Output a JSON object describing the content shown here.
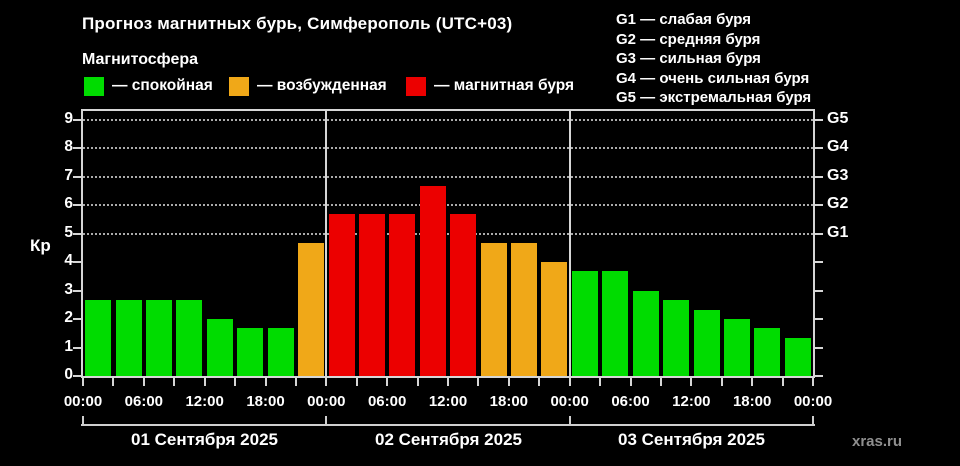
{
  "header": {
    "title": "Прогноз магнитных бурь, Симферополь (UTC+03)",
    "legend_title": "Магнитосфера",
    "legend": [
      {
        "id": "quiet",
        "label": "— спокойная",
        "color": "#00dc00"
      },
      {
        "id": "excited",
        "label": "— возбужденная",
        "color": "#f0a818"
      },
      {
        "id": "storm",
        "label": "— магнитная буря",
        "color": "#ec0000"
      }
    ],
    "storm_scale": [
      "G1 — слабая буря",
      "G2 — средняя буря",
      "G3 — сильная буря",
      "G4 — очень сильная буря",
      "G5 — экстремальная буря"
    ]
  },
  "chart_data": {
    "type": "bar",
    "title": "Прогноз магнитных бурь, Симферополь (UTC+03)",
    "ylabel": "Кр",
    "ylim": [
      0,
      9.3
    ],
    "yticks": [
      0,
      1,
      2,
      3,
      4,
      5,
      6,
      7,
      8,
      9
    ],
    "grid_kp_levels": [
      5,
      6,
      7,
      8,
      9
    ],
    "right_axis": [
      {
        "label": "G5",
        "kp": 9
      },
      {
        "label": "G4",
        "kp": 8
      },
      {
        "label": "G3",
        "kp": 7
      },
      {
        "label": "G2",
        "kp": 6
      },
      {
        "label": "G1",
        "kp": 5
      }
    ],
    "bar_interval_hours": 3,
    "series_colors": {
      "quiet": "#00dc00",
      "excited": "#f0a818",
      "storm": "#ec0000"
    },
    "x_tick_labels": [
      "00:00",
      "06:00",
      "12:00",
      "18:00",
      "00:00",
      "06:00",
      "12:00",
      "18:00",
      "00:00",
      "06:00",
      "12:00",
      "18:00",
      "00:00"
    ],
    "days": [
      {
        "date": "01 Сентября 2025",
        "values": [
          2.67,
          2.67,
          2.67,
          2.67,
          2.0,
          1.67,
          1.67,
          4.67
        ],
        "levels": [
          "quiet",
          "quiet",
          "quiet",
          "quiet",
          "quiet",
          "quiet",
          "quiet",
          "excited"
        ]
      },
      {
        "date": "02 Сентября 2025",
        "values": [
          5.67,
          5.67,
          5.67,
          6.67,
          5.67,
          4.67,
          4.67,
          4.0
        ],
        "levels": [
          "storm",
          "storm",
          "storm",
          "storm",
          "storm",
          "excited",
          "excited",
          "excited"
        ]
      },
      {
        "date": "03 Сентября 2025",
        "values": [
          3.67,
          3.67,
          3.0,
          2.67,
          2.33,
          2.0,
          1.67,
          1.33
        ],
        "levels": [
          "quiet",
          "quiet",
          "quiet",
          "quiet",
          "quiet",
          "quiet",
          "quiet",
          "quiet"
        ]
      }
    ]
  },
  "footer": {
    "watermark": "xras.ru"
  }
}
